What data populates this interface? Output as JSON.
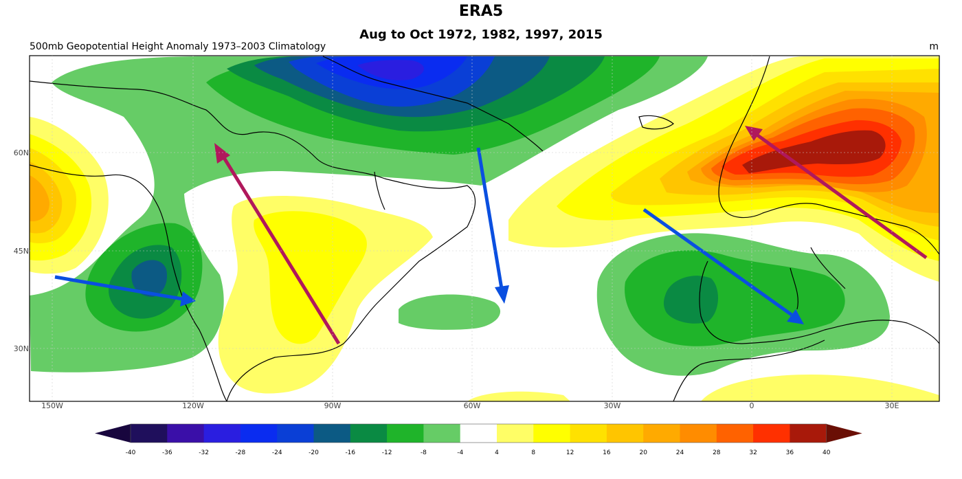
{
  "title": "ERA5",
  "subtitle": "Aug to Oct 1972, 1982, 1997, 2015",
  "left_label": "500mb Geopotential Height Anomaly  1973–2003 Climatology",
  "units": "m",
  "lat_ticks": [
    "60N",
    "45N",
    "30N"
  ],
  "lon_ticks": [
    "150W",
    "120W",
    "90W",
    "60W",
    "30W",
    "0",
    "30E"
  ],
  "colorbar": {
    "ticks": [
      "-40",
      "-36",
      "-32",
      "-28",
      "-24",
      "-20",
      "-16",
      "-12",
      "-8",
      "-4",
      "4",
      "8",
      "12",
      "16",
      "20",
      "24",
      "28",
      "32",
      "36",
      "40"
    ],
    "colors": [
      "#1f0f5c",
      "#3a0fa8",
      "#2a1ee0",
      "#0a2cf0",
      "#0a3fd6",
      "#0c5a84",
      "#0a8a43",
      "#1fb42a",
      "#66cc66",
      "#ffffff",
      "#fffe66",
      "#ffff00",
      "#ffe100",
      "#ffc500",
      "#ffaa00",
      "#ff8c00",
      "#ff6200",
      "#ff3000",
      "#a8190a"
    ],
    "low_extend_color": "#18063e",
    "high_extend_color": "#6a0f05"
  },
  "arrows": {
    "magenta_color": "#b0185c",
    "blue_color": "#0a4fe0"
  }
}
